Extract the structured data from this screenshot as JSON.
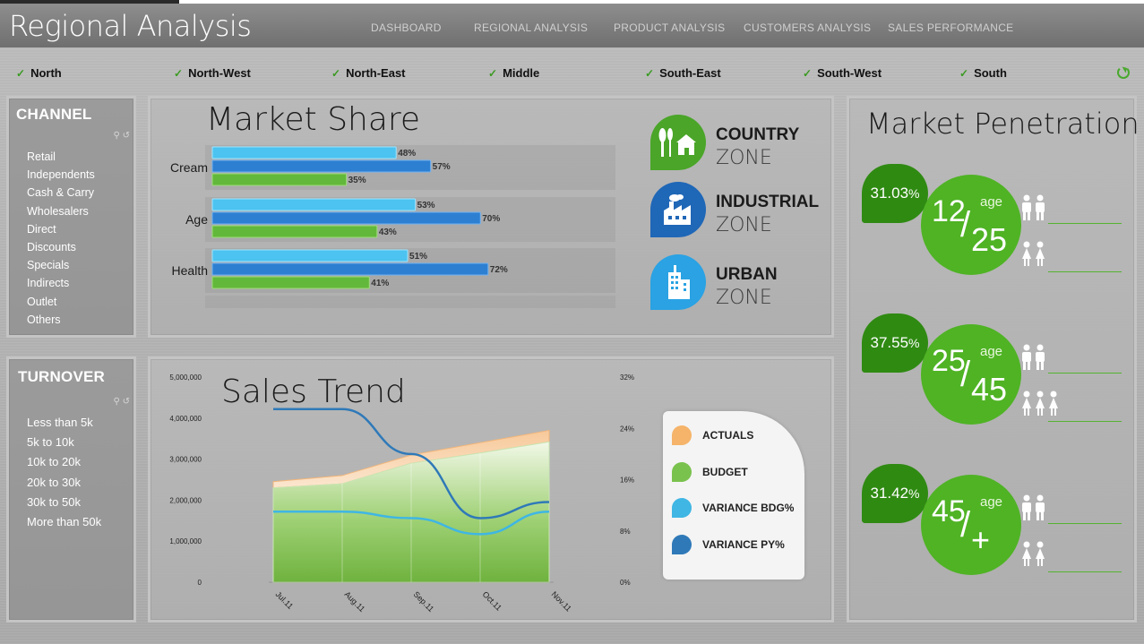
{
  "app_title": "Regional Analysis",
  "nav": [
    "DASHBOARD",
    "REGIONAL ANALYSIS",
    "PRODUCT ANALYSIS",
    "CUSTOMERS ANALYSIS",
    "SALES PERFORMANCE"
  ],
  "regions": [
    "North",
    "North-West",
    "North-East",
    "Middle",
    "South-East",
    "South-West",
    "South"
  ],
  "channel": {
    "title": "CHANNEL",
    "items": [
      "Retail",
      "Independents",
      "Cash & Carry",
      "Wholesalers",
      "Direct",
      "Discounts",
      "Specials",
      "Indirects",
      "Outlet",
      "Others"
    ]
  },
  "turnover": {
    "title": "TURNOVER",
    "items": [
      "Less than 5k",
      "5k to 10k",
      "10k to 20k",
      "20k to 30k",
      "30k to 50k",
      "More than 50k"
    ]
  },
  "market_share": {
    "title": "Market Share",
    "categories": [
      "Cream",
      "Age",
      "Health"
    ],
    "light_values": [
      "48%",
      "53%",
      "51%"
    ],
    "dark_values": [
      "57%",
      "70%",
      "72%"
    ],
    "green_values": [
      "35%",
      "43%",
      "41%"
    ]
  },
  "zones": [
    {
      "name": "COUNTRY",
      "sub": "ZONE",
      "color": "#4aa528",
      "icon": "house-tree-icon"
    },
    {
      "name": "INDUSTRIAL",
      "sub": "ZONE",
      "color": "#1f67b7",
      "icon": "factory-icon"
    },
    {
      "name": "URBAN",
      "sub": "ZONE",
      "color": "#2aa2e3",
      "icon": "building-icon"
    }
  ],
  "market_penetration": {
    "title": "Market Penetration",
    "groups": [
      {
        "pct": "31.03",
        "unit": "%",
        "top": "12",
        "bottom": "25",
        "age_label": "age",
        "female_count": 2
      },
      {
        "pct": "37.55",
        "unit": "%",
        "top": "25",
        "bottom": "45",
        "age_label": "age",
        "female_count": 3
      },
      {
        "pct": "31.42",
        "unit": "%",
        "top": "45",
        "bottom": "+",
        "age_label": "age",
        "female_count": 2
      }
    ]
  },
  "sales_trend": {
    "title": "Sales Trend",
    "left_ticks": [
      "5,000,000",
      "4,000,000",
      "3,000,000",
      "2,000,000",
      "1,000,000",
      "0"
    ],
    "right_ticks": [
      "32%",
      "24%",
      "16%",
      "8%",
      "0%"
    ],
    "legend": [
      "ACTUALS",
      "BUDGET",
      "VARIANCE BDG%",
      "VARIANCE PY%"
    ]
  },
  "colors": {
    "green": "#4fb324",
    "dark_green": "#2f8a12",
    "light_blue": "#4cc3f0",
    "dark_blue": "#2d7fd1",
    "orange": "#f5c48d"
  },
  "chart_data": [
    {
      "type": "bar",
      "title": "Market Share",
      "categories": [
        "Cream",
        "Age",
        "Health"
      ],
      "series": [
        {
          "name": "",
          "values": [
            48,
            53,
            51
          ]
        },
        {
          "name": "",
          "values": [
            57,
            70,
            72
          ]
        },
        {
          "name": "",
          "values": [
            35,
            43,
            41
          ]
        }
      ],
      "orientation": "horizontal",
      "xlim": [
        0,
        100
      ]
    },
    {
      "type": "area",
      "title": "Sales Trend",
      "x": [
        "Jul.11",
        "Aug.11",
        "Sep.11",
        "Oct.11",
        "Nov.11"
      ],
      "series": [
        {
          "name": "ACTUALS",
          "axis": "left",
          "values": [
            2450000,
            2600000,
            3100000,
            3400000,
            3700000
          ]
        },
        {
          "name": "BUDGET",
          "axis": "left",
          "values": [
            2300000,
            2400000,
            2900000,
            3150000,
            3420000
          ]
        },
        {
          "name": "VARIANCE BDG%",
          "axis": "right",
          "values": [
            11,
            11,
            10,
            7.5,
            11
          ]
        },
        {
          "name": "VARIANCE PY%",
          "axis": "right",
          "values": [
            27,
            27,
            20,
            10,
            12.5
          ]
        }
      ],
      "ylim_left": [
        0,
        5000000
      ],
      "ylim_right": [
        0,
        32
      ],
      "legend": "right"
    }
  ]
}
